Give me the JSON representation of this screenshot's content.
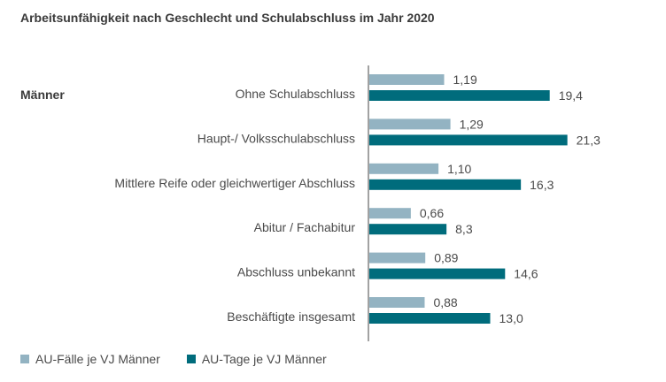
{
  "header": {
    "title": "Arbeitsunfähigkeit nach Geschlecht und Schulabschluss im Jahr 2020"
  },
  "group_label": "Männer",
  "colors": {
    "light": "#93b3c2",
    "dark": "#006c7c"
  },
  "chart_data": {
    "type": "bar",
    "orientation": "horizontal",
    "title": "Arbeitsunfähigkeit nach Geschlecht und Schulabschluss im Jahr 2020",
    "categories": [
      "Ohne Schulabschluss",
      "Haupt-/ Volksschulabschluss",
      "Mittlere Reife oder gleichwertiger Abschluss",
      "Abitur / Fachabitur",
      "Abschluss unbekannt",
      "Beschäftigte insgesamt"
    ],
    "series": [
      {
        "name": "AU-Fälle je VJ Männer",
        "values": [
          1.19,
          1.29,
          1.1,
          0.66,
          0.89,
          0.88
        ],
        "labels": [
          "1,19",
          "1,29",
          "1,10",
          "0,66",
          "0,89",
          "0,88"
        ]
      },
      {
        "name": "AU-Tage je VJ Männer",
        "values": [
          19.4,
          21.3,
          16.3,
          8.3,
          14.6,
          13.0
        ],
        "labels": [
          "19,4",
          "21,3",
          "16,3",
          "8,3",
          "14,6",
          "13,0"
        ]
      }
    ],
    "legend_position": "bottom-left",
    "grid": false
  }
}
